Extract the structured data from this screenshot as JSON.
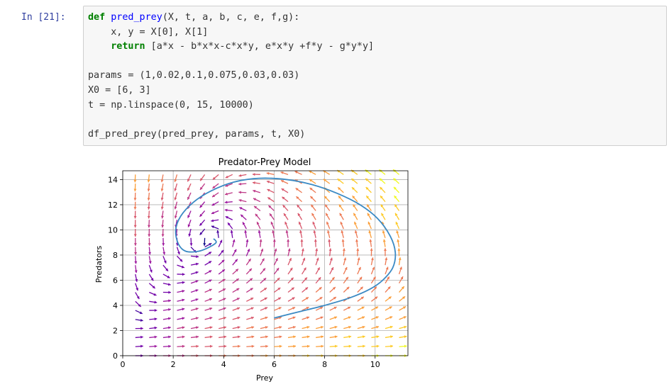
{
  "prompt": "In [21]:",
  "code": {
    "line1": {
      "kw": "def",
      "fn": "pred_prey",
      "rest": "(X, t, a, b, c, e, f,g):"
    },
    "line2": "    x, y = X[0], X[1]",
    "line3": {
      "indent": "    ",
      "kw": "return",
      "rest": " [a*x - b*x*x-c*x*y, e*x*y +f*y - g*y*y]"
    },
    "line4": "params = (1,0.02,0.1,0.075,0.03,0.03)",
    "line5": "X0 = [6, 3]",
    "line6": "t = np.linspace(0, 15, 10000)",
    "line7": "df_pred_prey(pred_prey, params, t, X0)"
  },
  "chart_data": {
    "type": "line",
    "title": "Predator-Prey Model",
    "xlabel": "Prey",
    "ylabel": "Predators",
    "xlim": [
      0,
      11.3
    ],
    "ylim": [
      0,
      14.7
    ],
    "xticks": [
      0,
      2,
      4,
      6,
      8,
      10
    ],
    "yticks": [
      0,
      2,
      4,
      6,
      8,
      10,
      12,
      14
    ],
    "grid": true,
    "quiver": {
      "params": {
        "a": 1,
        "b": 0.02,
        "c": 0.1,
        "e": 0.075,
        "f": 0.03,
        "g": 0.03
      },
      "x_start": 0.5,
      "x_step": 0.55,
      "x_count": 20,
      "y_start": 0.0,
      "y_step": 0.72,
      "y_count": 21,
      "colormap": "plasma"
    },
    "series": [
      {
        "color": "#3b8ac4",
        "x": [
          6.0,
          7.0,
          8.0,
          9.0,
          9.8,
          10.3,
          10.7,
          10.8,
          10.6,
          10.1,
          9.4,
          8.5,
          7.5,
          6.5,
          5.4,
          4.4,
          3.5,
          2.8,
          2.3,
          2.1,
          2.2,
          2.5,
          3.0,
          3.4,
          3.7,
          3.6
        ],
        "y": [
          3.0,
          3.5,
          4.0,
          4.6,
          5.3,
          6.0,
          7.0,
          8.2,
          9.5,
          10.9,
          12.0,
          12.9,
          13.6,
          14.0,
          14.1,
          13.8,
          13.1,
          12.2,
          11.1,
          10.0,
          8.9,
          8.3,
          8.3,
          8.6,
          9.0,
          9.3
        ]
      }
    ]
  }
}
